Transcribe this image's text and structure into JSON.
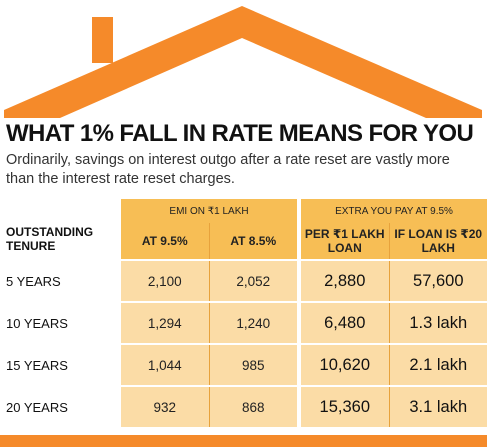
{
  "title": "WHAT 1% FALL IN RATE MEANS FOR YOU",
  "subtitle": "Ordinarily, savings on interest outgo after a rate reset are vastly more than the interest rate reset charges.",
  "colors": {
    "roof": "#f58a2a",
    "header": "#f7be55",
    "cell": "#fbdca6"
  },
  "chart_data": {
    "type": "table",
    "row_header": "OUTSTANDING TENURE",
    "column_groups": [
      {
        "label": "EMI ON ₹1 LAKH",
        "columns": [
          "AT 9.5%",
          "AT 8.5%"
        ]
      },
      {
        "label": "EXTRA YOU PAY AT 9.5%",
        "columns": [
          "PER ₹1 LAKH LOAN",
          "IF LOAN IS ₹20 LAKH"
        ]
      }
    ],
    "rows": [
      {
        "label": "5 YEARS",
        "values": [
          "2,100",
          "2,052",
          "2,880",
          "57,600"
        ]
      },
      {
        "label": "10 YEARS",
        "values": [
          "1,294",
          "1,240",
          "6,480",
          "1.3 lakh"
        ]
      },
      {
        "label": "15 YEARS",
        "values": [
          "1,044",
          "985",
          "10,620",
          "2.1 lakh"
        ]
      },
      {
        "label": "20 YEARS",
        "values": [
          "932",
          "868",
          "15,360",
          "3.1 lakh"
        ]
      }
    ]
  }
}
